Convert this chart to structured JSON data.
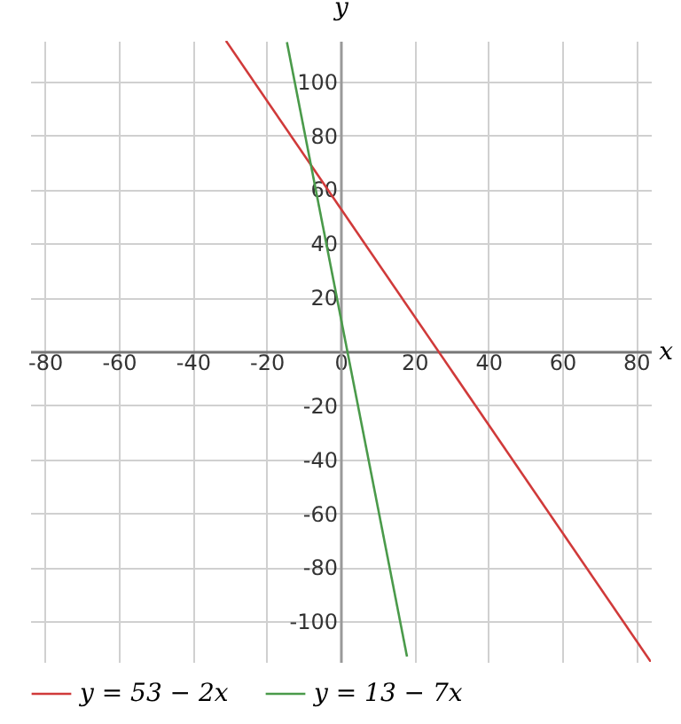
{
  "chart_data": {
    "type": "line",
    "xlabel": "x",
    "ylabel": "y",
    "xlim": [
      -84,
      84
    ],
    "ylim": [
      -115,
      115
    ],
    "xticks": [
      -80,
      -60,
      -40,
      -20,
      0,
      20,
      40,
      60,
      80
    ],
    "yticks": [
      -100,
      -80,
      -60,
      -40,
      -20,
      20,
      40,
      60,
      80,
      100
    ],
    "grid": true,
    "legend": "bottom",
    "marker": "none",
    "line_style": "solid",
    "series": [
      {
        "name": "y = 53 − 2x",
        "color": "#d03a3a",
        "x": [
          -31,
          84
        ],
        "values": [
          115,
          -115
        ]
      },
      {
        "name": "y = 13 − 7x",
        "color": "#4a9a4a",
        "x": [
          -14.5,
          18
        ],
        "values": [
          114.5,
          -113
        ]
      }
    ]
  }
}
